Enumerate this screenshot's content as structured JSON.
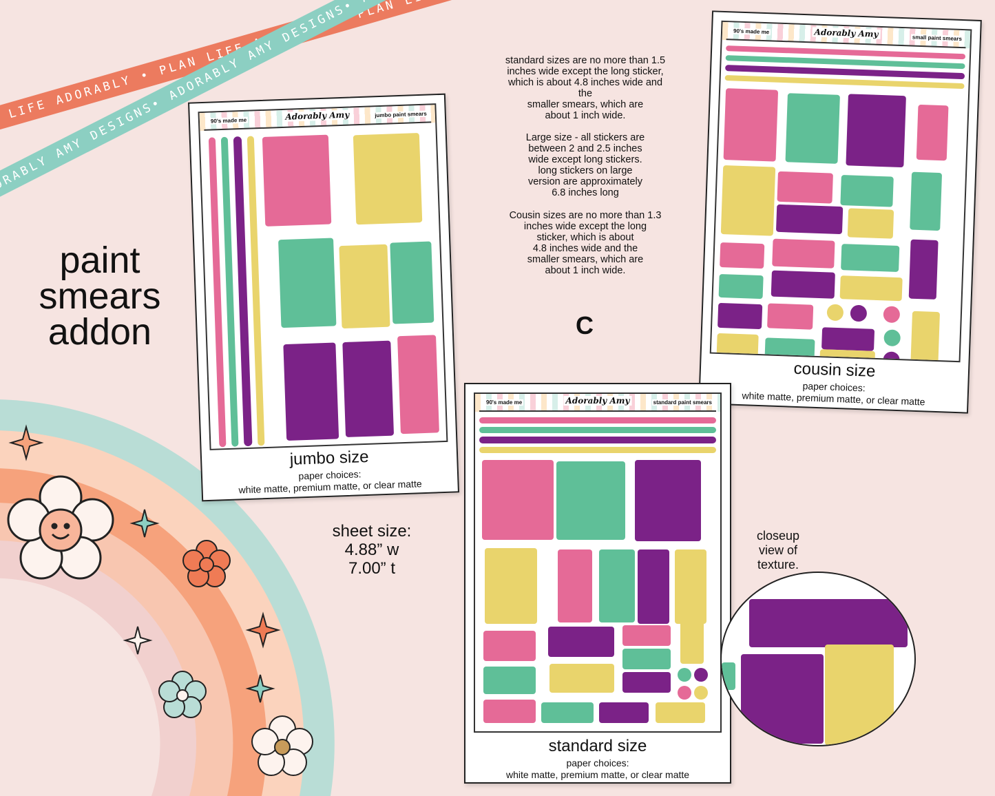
{
  "ribbons": [
    {
      "text": "PLAN LIFE ADORABLY • PLAN LIFE ADORABLY • PLAN LIFE ADORABLY •",
      "color": "#ec7b5f"
    },
    {
      "text": "ADORABLY AMY DESIGNS• ADORABLY AMY DESIGNS• ADORABLY AMY DESIGNS•",
      "color": "#8ccfc2"
    }
  ],
  "title": {
    "line1": "paint",
    "line2": "smears",
    "line3": "addon"
  },
  "info": {
    "standard": [
      "standard sizes are no more than 1.5",
      "inches wide except the long sticker,",
      "which is about 4.8 inches wide and",
      "the",
      "smaller smears, which are",
      "about 1 inch wide."
    ],
    "large": [
      "Large size - all stickers are",
      "between 2 and 2.5 inches",
      "wide except long stickers.",
      "long stickers on large",
      "version are approximately",
      "6.8 inches long"
    ],
    "cousin": [
      "Cousin sizes are no more than 1.3",
      "inches wide except the long",
      "sticker, which is about",
      "4.8 inches wide and the",
      "smaller smears, which are",
      "about 1 inch wide."
    ]
  },
  "corner_letter": "C",
  "sheet_size": {
    "line1": "sheet size:",
    "line2": "4.88” w",
    "line3": "7.00” t"
  },
  "closeup": {
    "line1": "closeup",
    "line2": "view of",
    "line3": "texture."
  },
  "sheets": {
    "jumbo": {
      "header_left": "90's made me",
      "header_logo": "Adorably Amy",
      "header_right": "jumbo paint smears",
      "title": "jumbo size",
      "sub1": "paper choices:",
      "sub2": "white matte, premium matte, or clear matte"
    },
    "cousin": {
      "header_left": "90's made me",
      "header_logo": "Adorably Amy",
      "header_right": "small paint smears",
      "title": "cousin size",
      "sub1": "paper choices:",
      "sub2": "white matte, premium matte, or clear matte"
    },
    "standard": {
      "header_left": "90's made me",
      "header_logo": "Adorably Amy",
      "header_right": "standard paint smears",
      "title": "standard size",
      "sub1": "paper choices:",
      "sub2": "white matte, premium matte, or clear matte"
    }
  },
  "colors": {
    "pink": "#e56a97",
    "teal": "#5fbf98",
    "purple": "#7b2287",
    "yellow": "#e9d46c",
    "background": "#f6e4e1"
  }
}
